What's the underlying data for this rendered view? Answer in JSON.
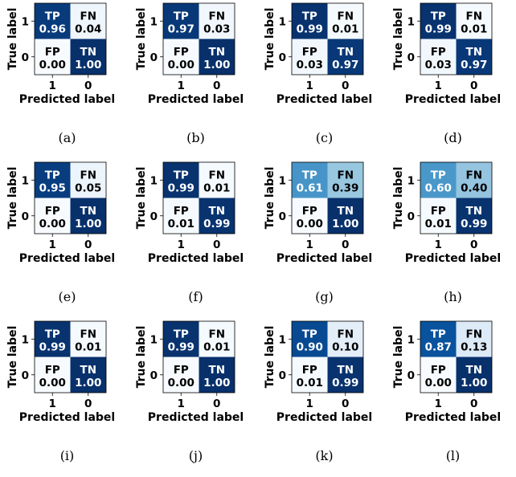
{
  "chart_data": {
    "type": "heatmap",
    "xlabel": "Predicted label",
    "ylabel": "True label",
    "x_ticks": [
      "1",
      "0"
    ],
    "y_ticks": [
      "1",
      "0"
    ],
    "cell_labels": [
      [
        "TP",
        "FN"
      ],
      [
        "FP",
        "TN"
      ]
    ],
    "colormap": "Blues",
    "panels": [
      {
        "caption": "(a)",
        "values": [
          [
            "0.96",
            "0.04"
          ],
          [
            "0.00",
            "1.00"
          ]
        ]
      },
      {
        "caption": "(b)",
        "values": [
          [
            "0.97",
            "0.03"
          ],
          [
            "0.00",
            "1.00"
          ]
        ]
      },
      {
        "caption": "(c)",
        "values": [
          [
            "0.99",
            "0.01"
          ],
          [
            "0.03",
            "0.97"
          ]
        ]
      },
      {
        "caption": "(d)",
        "values": [
          [
            "0.99",
            "0.01"
          ],
          [
            "0.03",
            "0.97"
          ]
        ]
      },
      {
        "caption": "(e)",
        "values": [
          [
            "0.95",
            "0.05"
          ],
          [
            "0.00",
            "1.00"
          ]
        ]
      },
      {
        "caption": "(f)",
        "values": [
          [
            "0.99",
            "0.01"
          ],
          [
            "0.01",
            "0.99"
          ]
        ]
      },
      {
        "caption": "(g)",
        "values": [
          [
            "0.61",
            "0.39"
          ],
          [
            "0.00",
            "1.00"
          ]
        ]
      },
      {
        "caption": "(h)",
        "values": [
          [
            "0.60",
            "0.40"
          ],
          [
            "0.01",
            "0.99"
          ]
        ]
      },
      {
        "caption": "(i)",
        "values": [
          [
            "0.99",
            "0.01"
          ],
          [
            "0.00",
            "1.00"
          ]
        ]
      },
      {
        "caption": "(j)",
        "values": [
          [
            "0.99",
            "0.01"
          ],
          [
            "0.00",
            "1.00"
          ]
        ]
      },
      {
        "caption": "(k)",
        "values": [
          [
            "0.90",
            "0.10"
          ],
          [
            "0.01",
            "0.99"
          ]
        ]
      },
      {
        "caption": "(l)",
        "values": [
          [
            "0.87",
            "0.13"
          ],
          [
            "0.00",
            "1.00"
          ]
        ]
      }
    ]
  }
}
